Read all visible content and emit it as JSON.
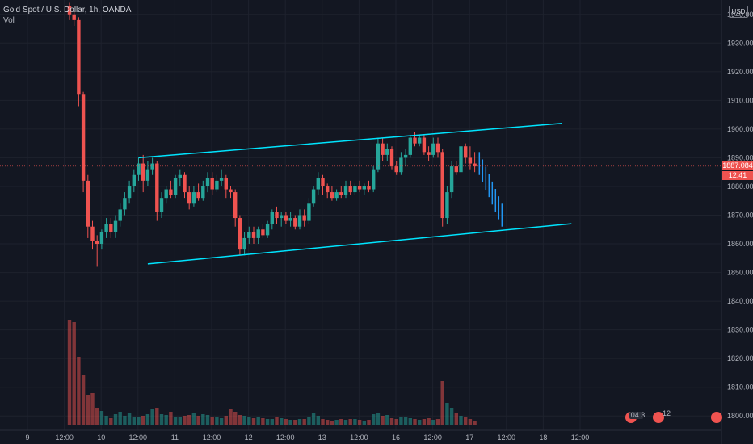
{
  "legend": {
    "title": "Gold Spot / U.S. Dollar, 1h, OANDA",
    "volume_label": "Vol"
  },
  "price_axis": {
    "currency": "USD",
    "current_price": "1887.084",
    "countdown": "12:41"
  },
  "events": {
    "badge_1": "104.3",
    "badge_2": "12"
  },
  "colors": {
    "background": "#131722",
    "up": "#26a69a",
    "down": "#ef5350",
    "up_volume": "#26a69a",
    "down_volume": "#ef5350",
    "channel": "#00e5ff",
    "price_line": "#ef5350",
    "grid": "#1e222d"
  },
  "chart_data": {
    "type": "candlestick",
    "title": "Gold Spot / U.S. Dollar, 1h, OANDA",
    "ylim": [
      1795,
      1945
    ],
    "y_ticks": [
      1800,
      1810,
      1820,
      1830,
      1840,
      1850,
      1860,
      1870,
      1880,
      1890,
      1900,
      1910,
      1920,
      1930,
      1940
    ],
    "x_ticks": [
      "9",
      "12:00",
      "10",
      "12:00",
      "11",
      "12:00",
      "12",
      "12:00",
      "13",
      "12:00",
      "16",
      "12:00",
      "17",
      "12:00",
      "18",
      "12:00"
    ],
    "x_tick_positions": [
      0,
      8,
      16,
      24,
      32,
      40,
      48,
      56,
      64,
      72,
      80,
      88,
      96,
      104,
      112,
      120
    ],
    "candles": [
      [
        1943,
        1944,
        1938,
        1940
      ],
      [
        1940,
        1941,
        1936,
        1938
      ],
      [
        1938,
        1939,
        1908,
        1912
      ],
      [
        1912,
        1913,
        1878,
        1882
      ],
      [
        1882,
        1884,
        1862,
        1866
      ],
      [
        1866,
        1868,
        1858,
        1861
      ],
      [
        1861,
        1863,
        1852,
        1860
      ],
      [
        1860,
        1865,
        1858,
        1864
      ],
      [
        1864,
        1869,
        1862,
        1867
      ],
      [
        1867,
        1869,
        1862,
        1864
      ],
      [
        1864,
        1870,
        1862,
        1868
      ],
      [
        1868,
        1874,
        1866,
        1872
      ],
      [
        1872,
        1878,
        1870,
        1876
      ],
      [
        1876,
        1882,
        1874,
        1880
      ],
      [
        1880,
        1886,
        1878,
        1884
      ],
      [
        1884,
        1890,
        1882,
        1888
      ],
      [
        1888,
        1891,
        1878,
        1882
      ],
      [
        1882,
        1889,
        1880,
        1886
      ],
      [
        1886,
        1890,
        1884,
        1888
      ],
      [
        1888,
        1889,
        1868,
        1871
      ],
      [
        1871,
        1878,
        1869,
        1876
      ],
      [
        1876,
        1880,
        1874,
        1879
      ],
      [
        1879,
        1882,
        1876,
        1877
      ],
      [
        1877,
        1884,
        1876,
        1883
      ],
      [
        1883,
        1886,
        1880,
        1884
      ],
      [
        1884,
        1885,
        1876,
        1878
      ],
      [
        1878,
        1880,
        1872,
        1874
      ],
      [
        1874,
        1880,
        1873,
        1878
      ],
      [
        1878,
        1881,
        1875,
        1876
      ],
      [
        1876,
        1882,
        1875,
        1880
      ],
      [
        1880,
        1885,
        1878,
        1883
      ],
      [
        1883,
        1885,
        1877,
        1879
      ],
      [
        1879,
        1884,
        1878,
        1882
      ],
      [
        1882,
        1886,
        1880,
        1883
      ],
      [
        1883,
        1884,
        1876,
        1879
      ],
      [
        1879,
        1880,
        1876,
        1878
      ],
      [
        1878,
        1879,
        1866,
        1869
      ],
      [
        1869,
        1870,
        1856,
        1858
      ],
      [
        1858,
        1864,
        1856,
        1862
      ],
      [
        1862,
        1866,
        1860,
        1864
      ],
      [
        1864,
        1866,
        1860,
        1862
      ],
      [
        1862,
        1866,
        1860,
        1865
      ],
      [
        1865,
        1867,
        1862,
        1863
      ],
      [
        1863,
        1868,
        1862,
        1867
      ],
      [
        1867,
        1872,
        1865,
        1871
      ],
      [
        1871,
        1873,
        1867,
        1869
      ],
      [
        1869,
        1871,
        1866,
        1870
      ],
      [
        1870,
        1871,
        1867,
        1868
      ],
      [
        1868,
        1871,
        1866,
        1869
      ],
      [
        1869,
        1870,
        1865,
        1866
      ],
      [
        1866,
        1872,
        1865,
        1870
      ],
      [
        1870,
        1872,
        1866,
        1868
      ],
      [
        1868,
        1876,
        1867,
        1874
      ],
      [
        1874,
        1880,
        1873,
        1879
      ],
      [
        1879,
        1885,
        1877,
        1883
      ],
      [
        1883,
        1884,
        1877,
        1880
      ],
      [
        1880,
        1881,
        1876,
        1878
      ],
      [
        1878,
        1880,
        1875,
        1876
      ],
      [
        1876,
        1879,
        1875,
        1878
      ],
      [
        1878,
        1880,
        1876,
        1877
      ],
      [
        1877,
        1882,
        1876,
        1880
      ],
      [
        1880,
        1882,
        1877,
        1878
      ],
      [
        1878,
        1881,
        1877,
        1880
      ],
      [
        1880,
        1882,
        1878,
        1879
      ],
      [
        1879,
        1881,
        1877,
        1880
      ],
      [
        1880,
        1882,
        1878,
        1879
      ],
      [
        1879,
        1887,
        1878,
        1886
      ],
      [
        1886,
        1897,
        1885,
        1895
      ],
      [
        1895,
        1897,
        1889,
        1891
      ],
      [
        1891,
        1895,
        1889,
        1893
      ],
      [
        1893,
        1894,
        1886,
        1887
      ],
      [
        1887,
        1889,
        1884,
        1885
      ],
      [
        1885,
        1892,
        1884,
        1890
      ],
      [
        1890,
        1893,
        1887,
        1891
      ],
      [
        1891,
        1898,
        1890,
        1897
      ],
      [
        1897,
        1899,
        1894,
        1895
      ],
      [
        1895,
        1898,
        1894,
        1897
      ],
      [
        1897,
        1898,
        1891,
        1892
      ],
      [
        1892,
        1894,
        1889,
        1891
      ],
      [
        1891,
        1897,
        1890,
        1895
      ],
      [
        1895,
        1897,
        1890,
        1892
      ],
      [
        1892,
        1893,
        1866,
        1869
      ],
      [
        1869,
        1880,
        1867,
        1878
      ],
      [
        1878,
        1889,
        1876,
        1887
      ],
      [
        1887,
        1889,
        1884,
        1885
      ],
      [
        1885,
        1896,
        1884,
        1894
      ],
      [
        1894,
        1895,
        1888,
        1890
      ],
      [
        1890,
        1894,
        1886,
        1888
      ],
      [
        1888,
        1892,
        1885,
        1887
      ]
    ],
    "volume": [
      130,
      128,
      85,
      62,
      38,
      40,
      22,
      18,
      12,
      9,
      14,
      17,
      12,
      15,
      11,
      10,
      12,
      14,
      20,
      22,
      14,
      13,
      17,
      11,
      10,
      12,
      13,
      15,
      12,
      14,
      13,
      11,
      10,
      9,
      12,
      20,
      17,
      13,
      12,
      10,
      9,
      11,
      9,
      8,
      8,
      10,
      9,
      8,
      7,
      7,
      8,
      8,
      11,
      15,
      12,
      8,
      7,
      6,
      7,
      8,
      7,
      8,
      8,
      7,
      6,
      7,
      14,
      15,
      12,
      13,
      9,
      8,
      10,
      11,
      9,
      8,
      7,
      8,
      9,
      7,
      8,
      55,
      28,
      22,
      15,
      12,
      10,
      8,
      6
    ],
    "volume_up": [
      false,
      false,
      false,
      false,
      false,
      false,
      false,
      true,
      true,
      false,
      true,
      true,
      true,
      true,
      true,
      true,
      false,
      true,
      true,
      false,
      true,
      true,
      false,
      true,
      true,
      false,
      false,
      true,
      false,
      true,
      true,
      false,
      true,
      true,
      false,
      false,
      false,
      false,
      true,
      true,
      false,
      true,
      false,
      true,
      true,
      false,
      true,
      false,
      true,
      false,
      true,
      false,
      true,
      true,
      true,
      false,
      false,
      false,
      true,
      false,
      true,
      false,
      true,
      false,
      true,
      false,
      true,
      true,
      false,
      true,
      false,
      false,
      true,
      true,
      true,
      false,
      true,
      false,
      false,
      true,
      false,
      false,
      true,
      true,
      false,
      true,
      false,
      false,
      false
    ],
    "projection": {
      "start": 1888,
      "end": 1870
    },
    "channel": {
      "upper": {
        "from": [
          15,
          1890
        ],
        "to": [
          107,
          1902
        ]
      },
      "lower": {
        "from": [
          17,
          1853
        ],
        "to": [
          109,
          1867
        ]
      }
    },
    "current_price": 1887.084
  }
}
